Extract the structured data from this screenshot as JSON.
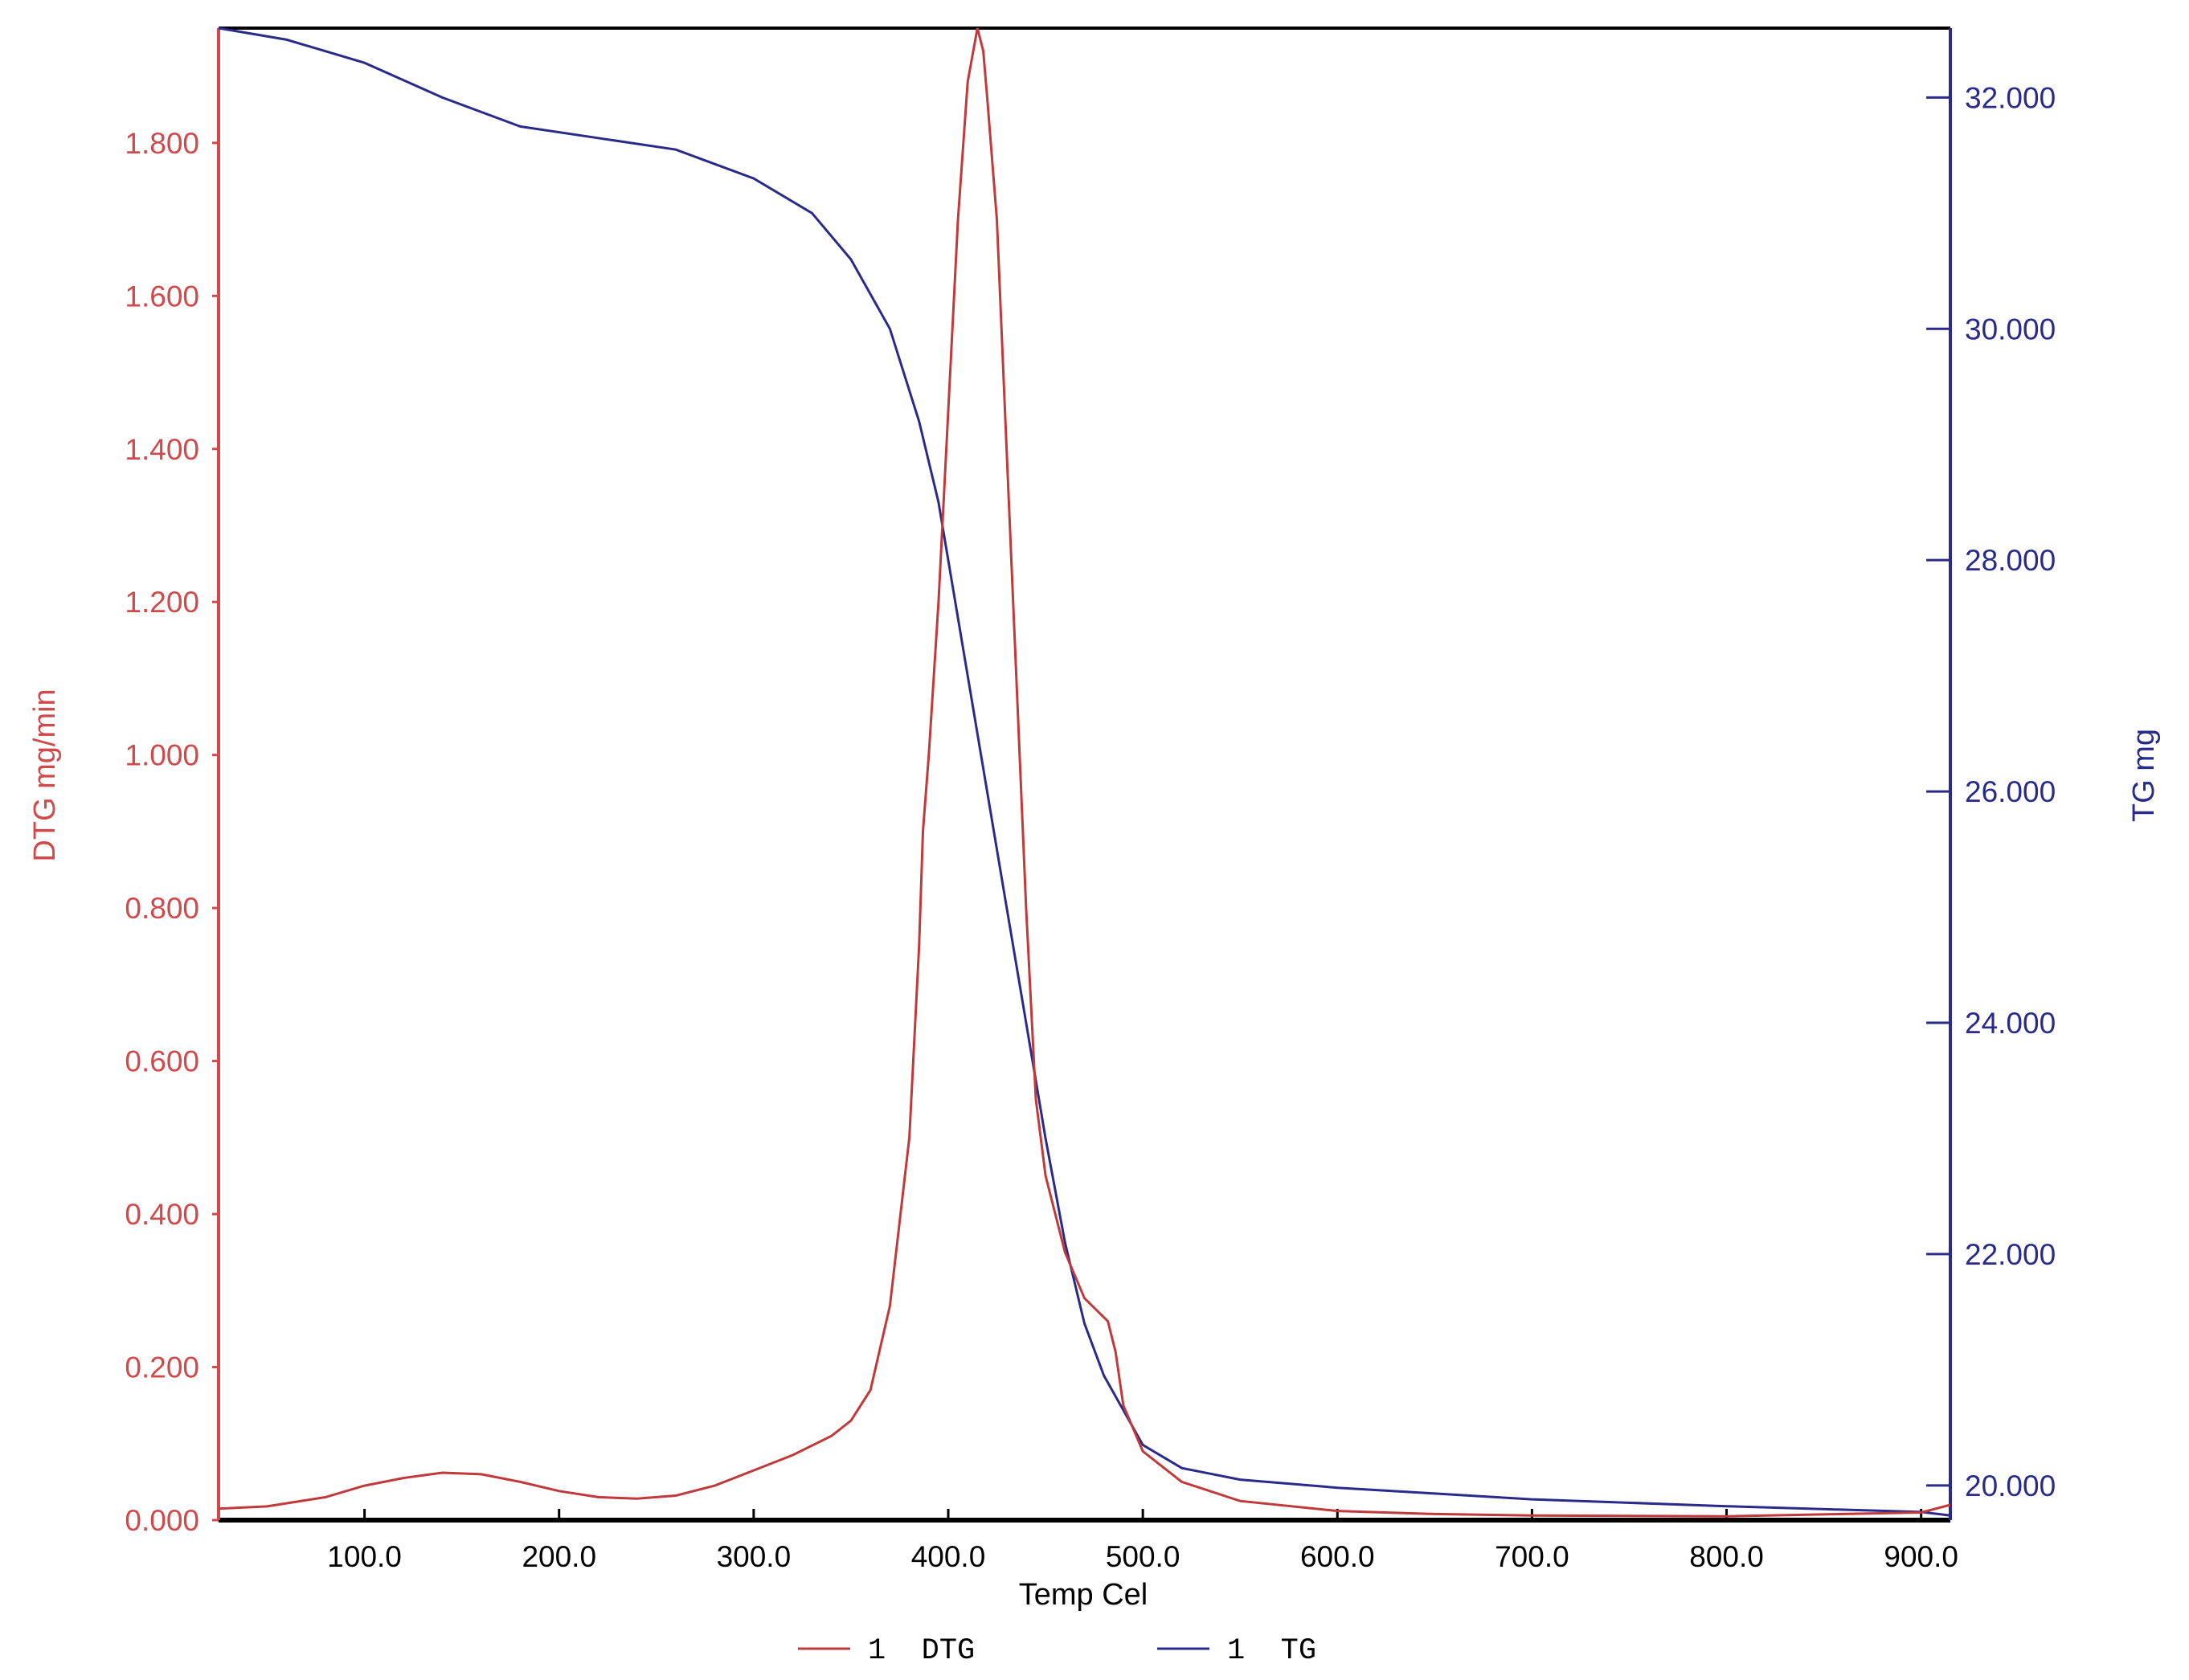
{
  "colors": {
    "dtg": "#c0393b",
    "tg": "#2a2a8a",
    "axis_left": "#d04a4c",
    "axis_right": "#2a2a8a",
    "frame": "#000000"
  },
  "chart_data": {
    "type": "line",
    "title": "",
    "xlabel": "Temp Cel",
    "ylabel_left": "DTG mg/min",
    "ylabel_right": "TG mg",
    "xlim": [
      25,
      915
    ],
    "ylim_left": [
      0.0,
      1.95
    ],
    "ylim_right": [
      19.7,
      32.6
    ],
    "x_ticks": [
      100,
      200,
      300,
      400,
      500,
      600,
      700,
      800,
      900
    ],
    "x_tick_labels": [
      "100.0",
      "200.0",
      "300.0",
      "400.0",
      "500.0",
      "600.0",
      "700.0",
      "800.0",
      "900.0"
    ],
    "y_left_ticks": [
      0,
      0.2,
      0.4,
      0.6,
      0.8,
      1.0,
      1.2,
      1.4,
      1.6,
      1.8
    ],
    "y_left_tick_labels": [
      "0.000",
      "0.200",
      "0.400",
      "0.600",
      "0.800",
      "1.000",
      "1.200",
      "1.400",
      "1.600",
      "1.800"
    ],
    "y_right_ticks": [
      20,
      22,
      24,
      26,
      28,
      30,
      32
    ],
    "y_right_tick_labels": [
      "20.000",
      "22.000",
      "24.000",
      "26.000",
      "28.000",
      "30.000",
      "32.000"
    ],
    "grid": false,
    "legend_position": "bottom-center",
    "series": [
      {
        "name": "1 DTG",
        "axis": "left",
        "x": [
          25,
          50,
          80,
          100,
          120,
          140,
          160,
          180,
          200,
          220,
          240,
          260,
          280,
          300,
          320,
          340,
          350,
          360,
          370,
          380,
          385,
          387,
          390,
          395,
          400,
          405,
          410,
          415,
          418,
          420,
          425,
          430,
          435,
          440,
          445,
          450,
          460,
          470,
          478,
          482,
          486,
          490,
          500,
          520,
          550,
          600,
          650,
          700,
          800,
          900,
          915
        ],
        "y": [
          0.015,
          0.018,
          0.03,
          0.045,
          0.055,
          0.062,
          0.06,
          0.05,
          0.038,
          0.03,
          0.028,
          0.032,
          0.045,
          0.065,
          0.085,
          0.11,
          0.13,
          0.17,
          0.28,
          0.5,
          0.75,
          0.9,
          1.0,
          1.2,
          1.45,
          1.7,
          1.88,
          1.95,
          1.92,
          1.86,
          1.7,
          1.4,
          1.1,
          0.8,
          0.55,
          0.45,
          0.35,
          0.29,
          0.27,
          0.26,
          0.22,
          0.15,
          0.09,
          0.05,
          0.025,
          0.012,
          0.008,
          0.006,
          0.005,
          0.01,
          0.02
        ]
      },
      {
        "name": "1 TG",
        "axis": "right",
        "x": [
          25,
          60,
          100,
          140,
          180,
          220,
          260,
          300,
          330,
          350,
          370,
          385,
          395,
          400,
          410,
          420,
          430,
          440,
          450,
          460,
          470,
          480,
          490,
          500,
          520,
          550,
          600,
          650,
          700,
          800,
          900,
          915
        ],
        "y": [
          32.6,
          32.5,
          32.3,
          32.0,
          31.75,
          31.65,
          31.55,
          31.3,
          31.0,
          30.6,
          30.0,
          29.2,
          28.5,
          28.0,
          27.0,
          26.0,
          25.0,
          24.0,
          23.0,
          22.1,
          21.4,
          20.95,
          20.65,
          20.35,
          20.15,
          20.05,
          19.98,
          19.93,
          19.88,
          19.82,
          19.77,
          19.74
        ]
      }
    ]
  },
  "legend": {
    "dtg_label": "1  DTG",
    "tg_label": "1  TG"
  }
}
